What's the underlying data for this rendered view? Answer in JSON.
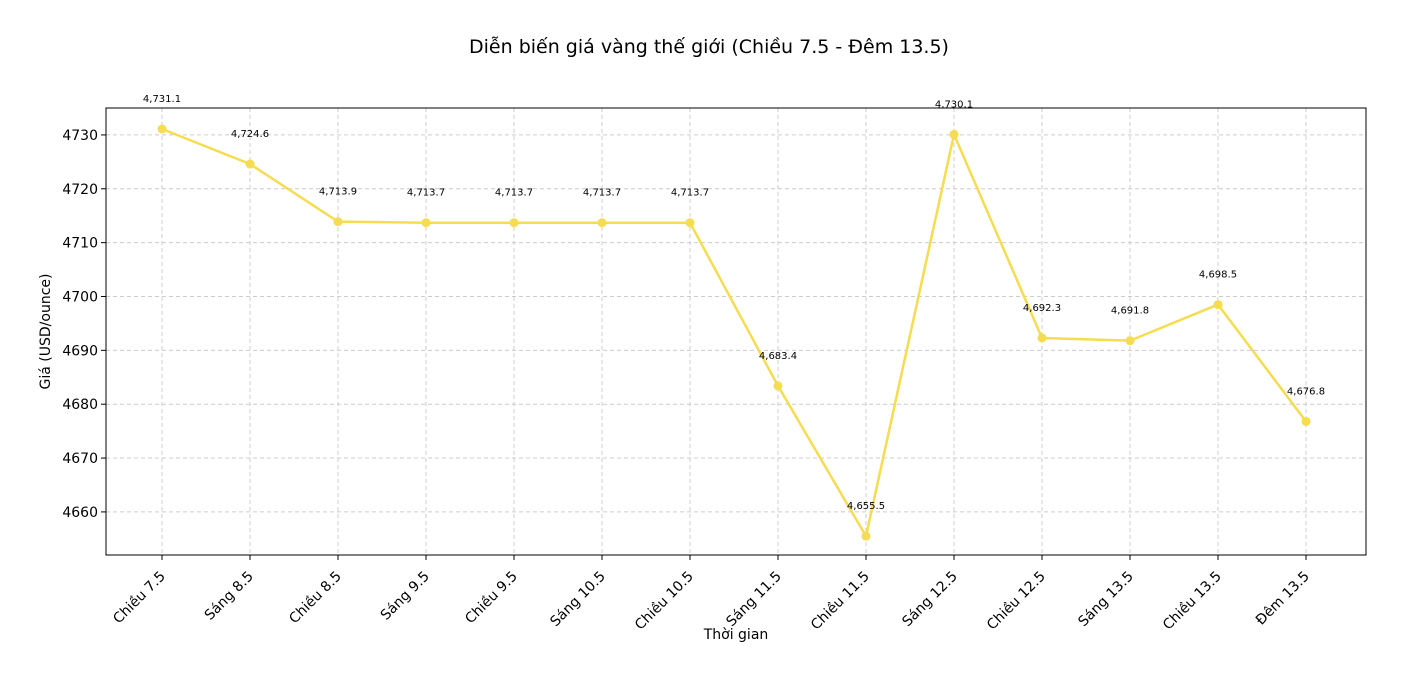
{
  "chart_data": {
    "type": "line",
    "title": "Diễn biến giá vàng thế giới (Chiều 7.5 - Đêm 13.5)",
    "xlabel": "Thời gian",
    "ylabel": "Giá (USD/ounce)",
    "categories": [
      "Chiều 7.5",
      "Sáng 8.5",
      "Chiều 8.5",
      "Sáng 9.5",
      "Chiều 9.5",
      "Sáng 10.5",
      "Chiều 10.5",
      "Sáng 11.5",
      "Chiều 11.5",
      "Sáng 12.5",
      "Chiều 12.5",
      "Sáng 13.5",
      "Chiều 13.5",
      "Đêm 13.5"
    ],
    "values": [
      4731.1,
      4724.6,
      4713.9,
      4713.7,
      4713.7,
      4713.7,
      4713.7,
      4683.4,
      4655.5,
      4730.1,
      4692.3,
      4691.8,
      4698.5,
      4676.8
    ],
    "data_labels": [
      "4,731.1",
      "4,724.6",
      "4,713.9",
      "4,713.7",
      "4,713.7",
      "4,713.7",
      "4,713.7",
      "4,683.4",
      "4,655.5",
      "4,730.1",
      "4,692.3",
      "4,691.8",
      "4,698.5",
      "4,676.8"
    ],
    "yticks": [
      4660,
      4670,
      4680,
      4690,
      4700,
      4710,
      4720,
      4730
    ],
    "ylim": [
      4652,
      4735
    ],
    "grid": true,
    "line_color": "#f5dc50"
  }
}
